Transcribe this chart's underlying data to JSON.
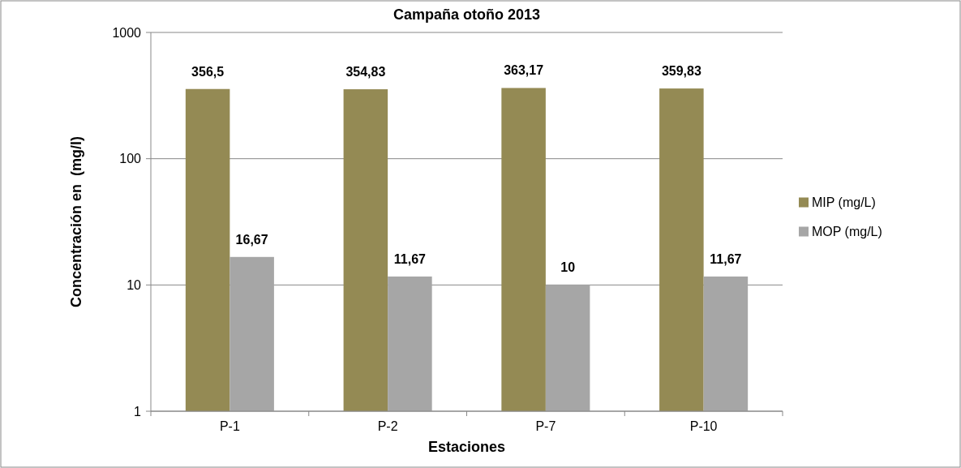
{
  "chart_data": {
    "type": "bar",
    "title": "Campaña otoño 2013",
    "xlabel": "Estaciones",
    "ylabel": "Concentración en  (mg/l)",
    "categories": [
      "P-1",
      "P-2",
      "P-7",
      "P-10"
    ],
    "series": [
      {
        "name": "MIP (mg/L)",
        "color": "#948a54",
        "values": [
          356.5,
          354.83,
          363.17,
          359.83
        ],
        "value_labels": [
          "356,5",
          "354,83",
          "363,17",
          "359,83"
        ]
      },
      {
        "name": "MOP (mg/L)",
        "color": "#a6a6a6",
        "values": [
          16.67,
          11.67,
          10,
          11.67
        ],
        "value_labels": [
          "16,67",
          "11,67",
          "10",
          "11,67"
        ]
      }
    ],
    "log": true,
    "ylim": [
      1,
      1000
    ],
    "yticks": [
      1,
      10,
      100,
      1000
    ],
    "grid": "y",
    "legend": "right"
  }
}
